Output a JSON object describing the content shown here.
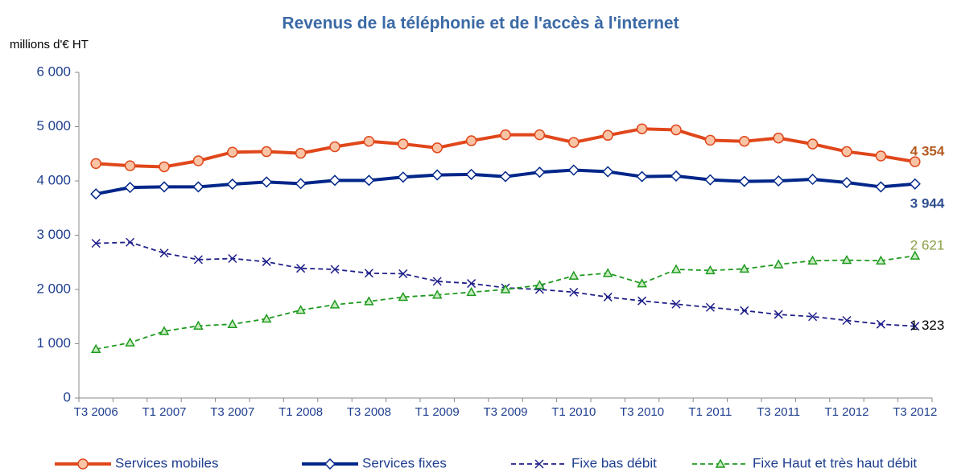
{
  "chart_data": {
    "type": "line",
    "title": "Revenus de la téléphonie et de l'accès à l'internet",
    "y_label": "millions d'€ HT",
    "categories": [
      "T3 2006",
      null,
      "T1 2007",
      null,
      "T3 2007",
      null,
      "T1 2008",
      null,
      "T3 2008",
      null,
      "T1 2009",
      null,
      "T3 2009",
      null,
      "T1 2010",
      null,
      "T3 2010",
      null,
      "T1 2011",
      null,
      "T3 2011",
      null,
      "T1 2012",
      null,
      "T3 2012"
    ],
    "ylim": [
      0,
      6000
    ],
    "yticks": [
      0,
      {
        "value": 1000,
        "label": "1 000"
      },
      {
        "value": 2000,
        "label": "2 000"
      },
      {
        "value": 3000,
        "label": "3 000"
      },
      {
        "value": 4000,
        "label": "4 000"
      },
      {
        "value": 5000,
        "label": "5 000"
      },
      {
        "value": 6000,
        "label": "6 000"
      }
    ],
    "series": [
      {
        "name": "Services mobiles",
        "color": "#e0471b",
        "marker": "circle",
        "marker_fill": "#f9c4a6",
        "dashed": false,
        "label_color": "#b35a1f",
        "label_bold": true,
        "values": [
          4320,
          4280,
          4260,
          4370,
          4530,
          4540,
          4510,
          4630,
          4730,
          4680,
          4610,
          4740,
          4850,
          4850,
          4710,
          4840,
          4960,
          4940,
          4750,
          4730,
          4790,
          4680,
          4540,
          4460,
          4354
        ],
        "value_labels": [
          null,
          null,
          null,
          null,
          null,
          null,
          null,
          null,
          null,
          null,
          null,
          null,
          null,
          null,
          null,
          null,
          null,
          null,
          null,
          null,
          null,
          null,
          null,
          null,
          "4 354"
        ]
      },
      {
        "name": "Services fixes",
        "color": "#00268a",
        "marker": "diamond",
        "marker_fill": "#ffffff",
        "dashed": false,
        "label_color": "#2f4f8f",
        "label_bold": true,
        "values": [
          3760,
          3880,
          3890,
          3890,
          3940,
          3980,
          3950,
          4010,
          4010,
          4070,
          4110,
          4120,
          4080,
          4160,
          4200,
          4170,
          4080,
          4090,
          4020,
          3990,
          4000,
          4030,
          3970,
          3890,
          3944
        ],
        "value_labels": [
          null,
          null,
          null,
          null,
          null,
          null,
          null,
          null,
          null,
          null,
          null,
          null,
          null,
          null,
          null,
          null,
          null,
          null,
          null,
          null,
          null,
          null,
          null,
          null,
          "3 944"
        ]
      },
      {
        "name": "Fixe bas débit",
        "color": "#1f1f8a",
        "marker": "x",
        "marker_fill": "none",
        "dashed": true,
        "label_color": "#000000",
        "label_bold": false,
        "values": [
          2850,
          2870,
          2670,
          2550,
          2570,
          2510,
          2390,
          2370,
          2300,
          2290,
          2150,
          2110,
          2030,
          2000,
          1950,
          1860,
          1790,
          1730,
          1670,
          1610,
          1540,
          1500,
          1430,
          1360,
          1323
        ],
        "value_labels": [
          null,
          null,
          null,
          null,
          null,
          null,
          null,
          null,
          null,
          null,
          null,
          null,
          null,
          null,
          null,
          null,
          null,
          null,
          null,
          null,
          null,
          null,
          null,
          null,
          "1 323"
        ]
      },
      {
        "name": "Fixe Haut et très haut débit",
        "color": "#1f9a1f",
        "marker": "triangle",
        "marker_fill": "#c8ecc0",
        "dashed": true,
        "label_color": "#8aa043",
        "label_bold": false,
        "values": [
          900,
          1020,
          1230,
          1330,
          1360,
          1460,
          1620,
          1720,
          1780,
          1860,
          1900,
          1950,
          2000,
          2080,
          2250,
          2300,
          2110,
          2370,
          2350,
          2380,
          2460,
          2530,
          2540,
          2530,
          2621
        ],
        "value_labels": [
          null,
          null,
          null,
          null,
          null,
          null,
          null,
          null,
          null,
          null,
          null,
          null,
          null,
          null,
          null,
          null,
          null,
          null,
          null,
          null,
          null,
          null,
          null,
          null,
          "2 621"
        ]
      }
    ]
  }
}
